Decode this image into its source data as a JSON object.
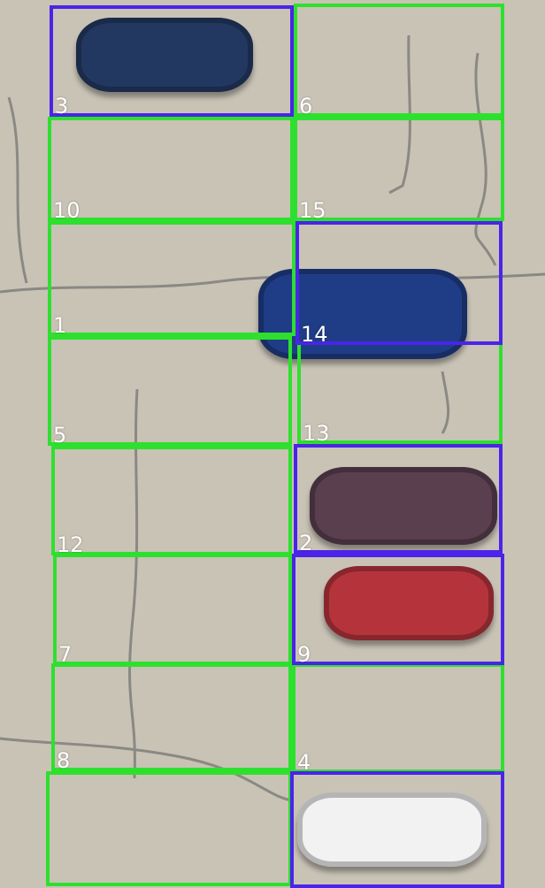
{
  "colors": {
    "empty": "#2ee02e",
    "occupied": "#4a24e8",
    "pavement": "#c9c3b6",
    "crack": "#555a5a"
  },
  "slots": [
    {
      "label": "3",
      "status": "occupied"
    },
    {
      "label": "6",
      "status": "empty"
    },
    {
      "label": "10",
      "status": "empty"
    },
    {
      "label": "15",
      "status": "empty"
    },
    {
      "label": "1",
      "status": "empty"
    },
    {
      "label": "14",
      "status": "occupied"
    },
    {
      "label": "5",
      "status": "empty"
    },
    {
      "label": "13",
      "status": "empty"
    },
    {
      "label": "12",
      "status": "empty"
    },
    {
      "label": "2",
      "status": "occupied"
    },
    {
      "label": "7",
      "status": "empty"
    },
    {
      "label": "9",
      "status": "occupied"
    },
    {
      "label": "8",
      "status": "empty"
    },
    {
      "label": "4",
      "status": "empty"
    },
    {
      "label": "",
      "status": "empty"
    },
    {
      "label": "",
      "status": "occupied"
    }
  ],
  "cars": [
    {
      "name": "car-dark-blue",
      "color": "#233860"
    },
    {
      "name": "car-blue",
      "color": "#1f3d86"
    },
    {
      "name": "car-maroon",
      "color": "#5a3f4f"
    },
    {
      "name": "car-red",
      "color": "#b5343c"
    },
    {
      "name": "car-white",
      "color": "#f2f2f2"
    }
  ]
}
